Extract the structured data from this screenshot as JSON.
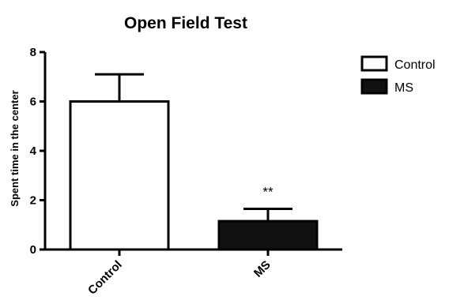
{
  "chart_data": {
    "type": "bar",
    "title": "Open Field Test",
    "xlabel": "",
    "ylabel": "Spent time in the center",
    "categories": [
      "Control",
      "MS"
    ],
    "values": [
      6.0,
      1.15
    ],
    "error_bars": [
      1.1,
      0.5
    ],
    "annotations": [
      "",
      "**"
    ],
    "fill_colors": [
      "#ffffff",
      "#111111"
    ],
    "edge_color": "#000000",
    "ylim": [
      0,
      8
    ],
    "yticks": [
      0,
      2,
      4,
      6,
      8
    ],
    "ytick_labels": [
      "0",
      "2",
      "4",
      "6",
      "8"
    ],
    "grid": false,
    "legend": {
      "position": "top-right",
      "entries": [
        "Control",
        "MS"
      ]
    }
  }
}
